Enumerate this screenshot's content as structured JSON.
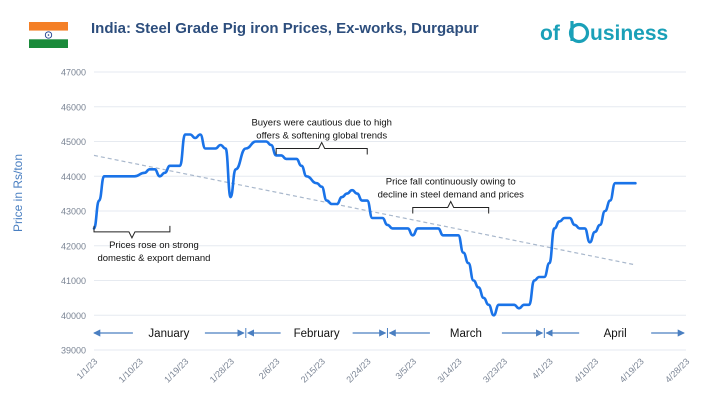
{
  "header": {
    "country": "India",
    "title_rest": ": Steel Grade Pig iron Prices, Ex-works, Durgapur",
    "logo_text_left": "of",
    "logo_text_right": "usiness",
    "logo_color": "#1aa0b8"
  },
  "colors": {
    "line": "#1a73e8",
    "trend": "#a9b8cc",
    "axis_text": "#7a8494",
    "grid": "#e6eaf0",
    "arrow": "#4a7fc1"
  },
  "chart_data": {
    "type": "line",
    "title": "India: Steel Grade Pig iron Prices, Ex-works, Durgapur",
    "xlabel": "",
    "ylabel": "Price in Rs/ton",
    "ylim": [
      39000,
      47000
    ],
    "yticks": [
      "39000",
      "40000",
      "41000",
      "42000",
      "43000",
      "44000",
      "45000",
      "46000",
      "47000"
    ],
    "xticks": [
      "1/1/23",
      "1/10/23",
      "1/19/23",
      "1/28/23",
      "2/6/23",
      "2/15/23",
      "2/24/23",
      "3/5/23",
      "3/14/23",
      "3/23/23",
      "4/1/23",
      "4/10/23",
      "4/19/23",
      "4/28/23"
    ],
    "grid": true,
    "series": [
      {
        "values": [
          [
            "2023-01-01",
            42500
          ],
          [
            "2023-01-02",
            43300
          ],
          [
            "2023-01-03",
            44000
          ],
          [
            "2023-01-04",
            44000
          ],
          [
            "2023-01-06",
            44000
          ],
          [
            "2023-01-08",
            44000
          ],
          [
            "2023-01-09",
            44000
          ],
          [
            "2023-01-11",
            44100
          ],
          [
            "2023-01-12",
            44200
          ],
          [
            "2023-01-13",
            44200
          ],
          [
            "2023-01-14",
            44000
          ],
          [
            "2023-01-15",
            44100
          ],
          [
            "2023-01-16",
            44300
          ],
          [
            "2023-01-17",
            44300
          ],
          [
            "2023-01-18",
            44300
          ],
          [
            "2023-01-19",
            45200
          ],
          [
            "2023-01-20",
            45200
          ],
          [
            "2023-01-21",
            45100
          ],
          [
            "2023-01-22",
            45200
          ],
          [
            "2023-01-23",
            44800
          ],
          [
            "2023-01-24",
            44800
          ],
          [
            "2023-01-25",
            44800
          ],
          [
            "2023-01-26",
            44900
          ],
          [
            "2023-01-27",
            44800
          ],
          [
            "2023-01-28",
            43400
          ],
          [
            "2023-01-29",
            44200
          ],
          [
            "2023-01-31",
            44800
          ],
          [
            "2023-02-02",
            45000
          ],
          [
            "2023-02-04",
            45000
          ],
          [
            "2023-02-05",
            44900
          ],
          [
            "2023-02-06",
            44600
          ],
          [
            "2023-02-07",
            44600
          ],
          [
            "2023-02-08",
            44500
          ],
          [
            "2023-02-09",
            44500
          ],
          [
            "2023-02-10",
            44500
          ],
          [
            "2023-02-11",
            44300
          ],
          [
            "2023-02-12",
            44000
          ],
          [
            "2023-02-14",
            43800
          ],
          [
            "2023-02-15",
            43700
          ],
          [
            "2023-02-16",
            43300
          ],
          [
            "2023-02-17",
            43200
          ],
          [
            "2023-02-18",
            43200
          ],
          [
            "2023-02-19",
            43400
          ],
          [
            "2023-02-20",
            43500
          ],
          [
            "2023-02-21",
            43600
          ],
          [
            "2023-02-22",
            43500
          ],
          [
            "2023-02-23",
            43300
          ],
          [
            "2023-02-24",
            43300
          ],
          [
            "2023-02-25",
            42800
          ],
          [
            "2023-02-26",
            42800
          ],
          [
            "2023-02-27",
            42800
          ],
          [
            "2023-02-28",
            42600
          ],
          [
            "2023-03-01",
            42500
          ],
          [
            "2023-03-02",
            42500
          ],
          [
            "2023-03-03",
            42500
          ],
          [
            "2023-03-04",
            42500
          ],
          [
            "2023-03-05",
            42300
          ],
          [
            "2023-03-06",
            42500
          ],
          [
            "2023-03-07",
            42500
          ],
          [
            "2023-03-08",
            42500
          ],
          [
            "2023-03-09",
            42500
          ],
          [
            "2023-03-10",
            42500
          ],
          [
            "2023-03-11",
            42300
          ],
          [
            "2023-03-12",
            42300
          ],
          [
            "2023-03-13",
            42300
          ],
          [
            "2023-03-14",
            42300
          ],
          [
            "2023-03-15",
            41800
          ],
          [
            "2023-03-16",
            41500
          ],
          [
            "2023-03-17",
            41000
          ],
          [
            "2023-03-18",
            40800
          ],
          [
            "2023-03-19",
            40500
          ],
          [
            "2023-03-20",
            40300
          ],
          [
            "2023-03-21",
            40000
          ],
          [
            "2023-03-22",
            40300
          ],
          [
            "2023-03-23",
            40300
          ],
          [
            "2023-03-24",
            40300
          ],
          [
            "2023-03-25",
            40300
          ],
          [
            "2023-03-26",
            40200
          ],
          [
            "2023-03-27",
            40300
          ],
          [
            "2023-03-28",
            40300
          ],
          [
            "2023-03-29",
            41000
          ],
          [
            "2023-03-30",
            41100
          ],
          [
            "2023-03-31",
            41100
          ],
          [
            "2023-04-01",
            41500
          ],
          [
            "2023-04-02",
            42500
          ],
          [
            "2023-04-03",
            42700
          ],
          [
            "2023-04-04",
            42800
          ],
          [
            "2023-04-05",
            42800
          ],
          [
            "2023-04-06",
            42600
          ],
          [
            "2023-04-07",
            42500
          ],
          [
            "2023-04-08",
            42500
          ],
          [
            "2023-04-09",
            42100
          ],
          [
            "2023-04-10",
            42400
          ],
          [
            "2023-04-11",
            42600
          ],
          [
            "2023-04-12",
            43000
          ],
          [
            "2023-04-13",
            43300
          ],
          [
            "2023-04-14",
            43800
          ],
          [
            "2023-04-15",
            43800
          ],
          [
            "2023-04-16",
            43800
          ],
          [
            "2023-04-17",
            43800
          ],
          [
            "2023-04-18",
            43800
          ]
        ]
      }
    ],
    "trendline": {
      "start": [
        "2023-01-01",
        44600
      ],
      "end": [
        "2023-04-18",
        41450
      ]
    },
    "months": [
      {
        "label": "January",
        "from": "2023-01-01",
        "to": "2023-01-31"
      },
      {
        "label": "February",
        "from": "2023-01-31",
        "to": "2023-02-28"
      },
      {
        "label": "March",
        "from": "2023-02-28",
        "to": "2023-03-31"
      },
      {
        "label": "April",
        "from": "2023-03-31",
        "to": "2023-04-30"
      }
    ],
    "annotations": [
      {
        "lines": [
          "Prices rose on strong",
          "domestic & export demand"
        ],
        "brace_from": "2023-01-01",
        "brace_to": "2023-01-16",
        "brace_y": 42400,
        "side": "below"
      },
      {
        "lines": [
          "Buyers were cautious due to high",
          "offers & softening global trends"
        ],
        "brace_from": "2023-02-06",
        "brace_to": "2023-02-24",
        "brace_y": 44800,
        "side": "above"
      },
      {
        "lines": [
          "Price fall continuously owing to",
          "decline in steel demand and prices"
        ],
        "brace_from": "2023-03-05",
        "brace_to": "2023-03-20",
        "brace_y": 43100,
        "side": "above"
      }
    ]
  }
}
